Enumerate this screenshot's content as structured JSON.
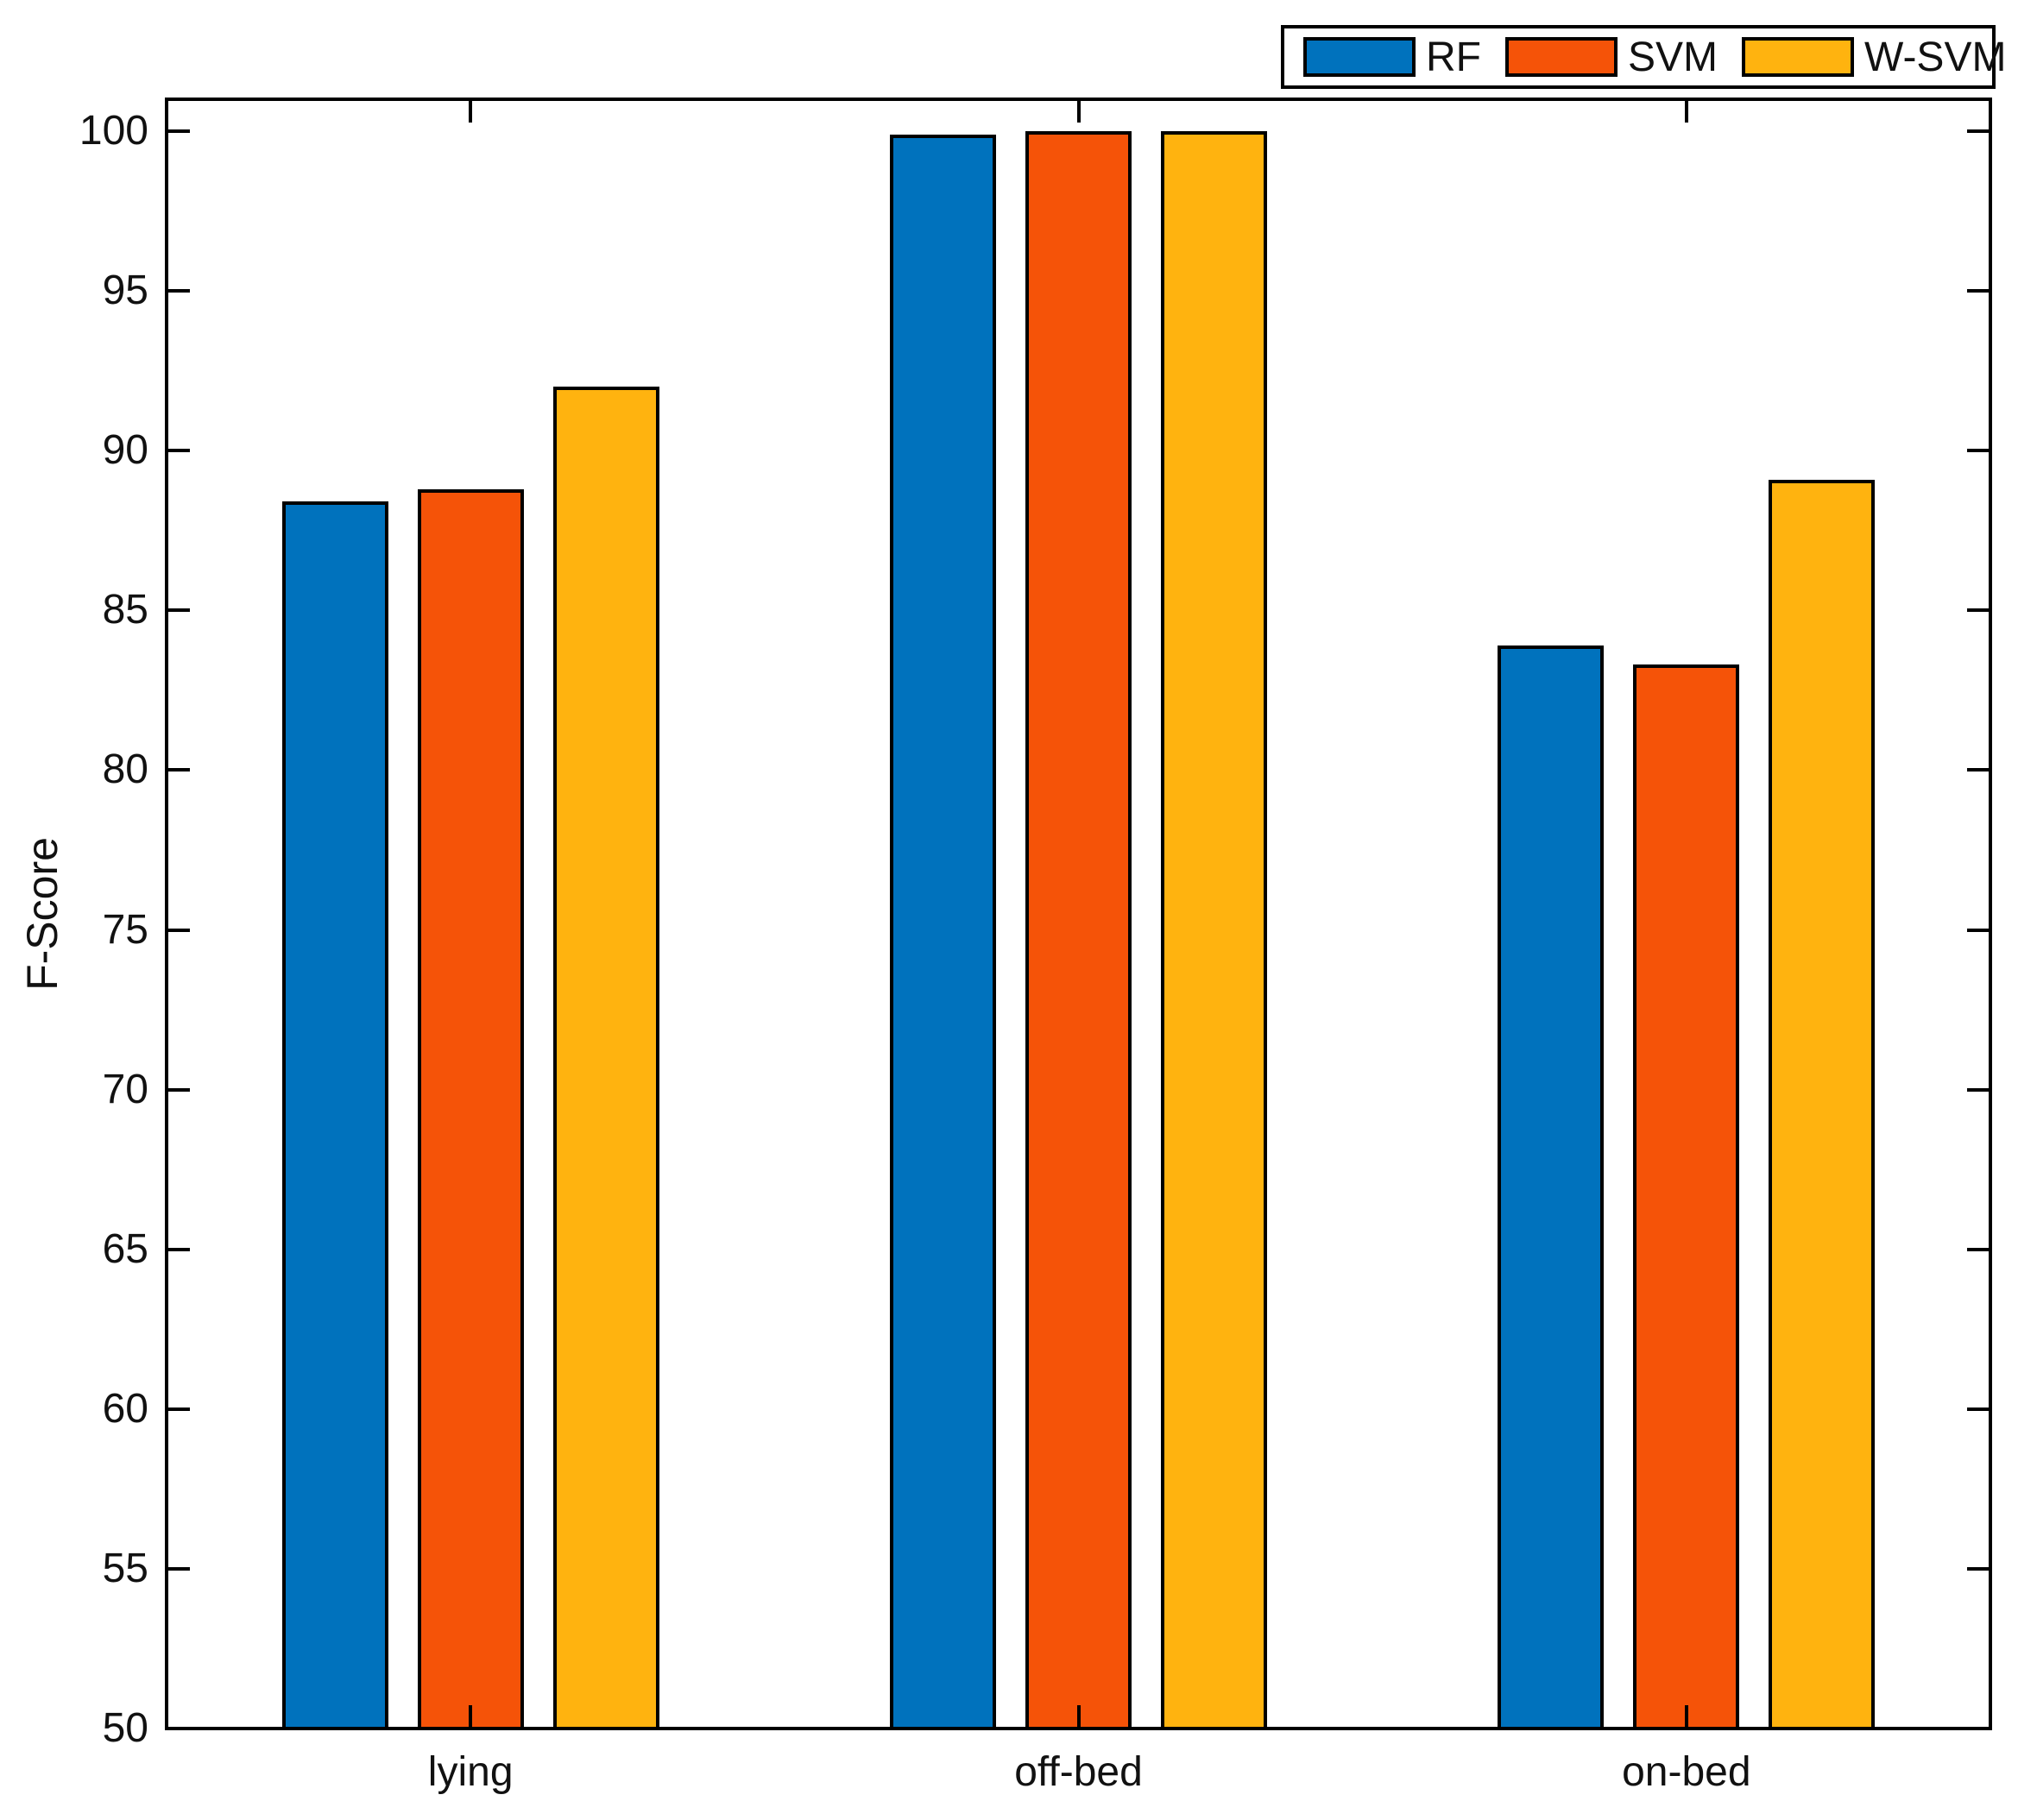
{
  "chart_data": {
    "type": "bar",
    "title": "",
    "xlabel": "",
    "ylabel": "F-Score",
    "categories": [
      "lying",
      "off-bed",
      "on-bed"
    ],
    "series": [
      {
        "name": "RF",
        "color": "#0072BD",
        "values": [
          88.4,
          99.9,
          83.9
        ]
      },
      {
        "name": "SVM",
        "color": "#F55308",
        "values": [
          88.8,
          100.0,
          83.3
        ]
      },
      {
        "name": "W-SVM",
        "color": "#FFB30F",
        "values": [
          92.0,
          100.0,
          89.1
        ]
      }
    ],
    "ylim": [
      50,
      101
    ],
    "yticks": [
      50,
      55,
      60,
      65,
      70,
      75,
      80,
      85,
      90,
      95,
      100
    ],
    "grid": false,
    "legend_position": "top-right",
    "axis_color": "#000000",
    "background_color": "#FFFFFF"
  }
}
